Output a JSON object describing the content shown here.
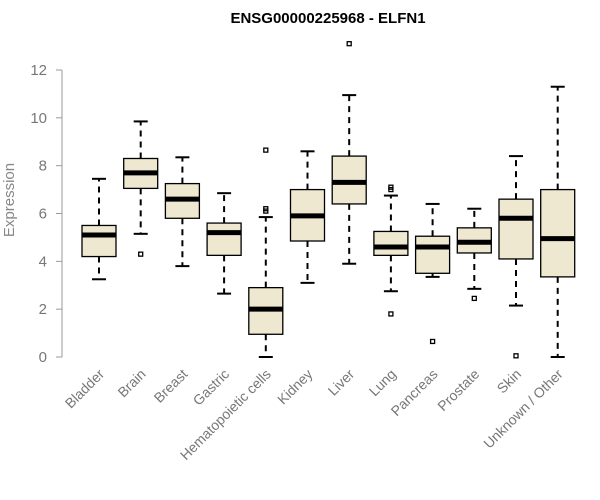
{
  "chart_data": {
    "type": "boxplot",
    "title": "ENSG00000225968 - ELFN1",
    "ylabel": "Expression",
    "ylim": [
      0,
      13
    ],
    "yticks": [
      0,
      2,
      4,
      6,
      8,
      10,
      12
    ],
    "categories": [
      "Bladder",
      "Brain",
      "Breast",
      "Gastric",
      "Hematopoietic cells",
      "Kidney",
      "Liver",
      "Lung",
      "Pancreas",
      "Prostate",
      "Skin",
      "Unknown / Other"
    ],
    "boxes": [
      {
        "category": "Bladder",
        "whisker_low": 3.25,
        "q1": 4.2,
        "median": 5.1,
        "q3": 5.5,
        "whisker_high": 7.45,
        "outliers": []
      },
      {
        "category": "Brain",
        "whisker_low": 5.15,
        "q1": 7.05,
        "median": 7.7,
        "q3": 8.3,
        "whisker_high": 9.85,
        "outliers": [
          4.3
        ]
      },
      {
        "category": "Breast",
        "whisker_low": 3.8,
        "q1": 5.8,
        "median": 6.6,
        "q3": 7.25,
        "whisker_high": 8.35,
        "outliers": []
      },
      {
        "category": "Gastric",
        "whisker_low": 2.65,
        "q1": 4.25,
        "median": 5.2,
        "q3": 5.6,
        "whisker_high": 6.85,
        "outliers": []
      },
      {
        "category": "Hematopoietic cells",
        "whisker_low": 0.0,
        "q1": 0.95,
        "median": 2.0,
        "q3": 2.9,
        "whisker_high": 5.85,
        "outliers": [
          6.1,
          6.2,
          8.65
        ]
      },
      {
        "category": "Kidney",
        "whisker_low": 3.1,
        "q1": 4.85,
        "median": 5.9,
        "q3": 7.0,
        "whisker_high": 8.6,
        "outliers": []
      },
      {
        "category": "Liver",
        "whisker_low": 3.9,
        "q1": 6.4,
        "median": 7.3,
        "q3": 8.4,
        "whisker_high": 10.95,
        "outliers": [
          13.1
        ]
      },
      {
        "category": "Lung",
        "whisker_low": 2.75,
        "q1": 4.25,
        "median": 4.6,
        "q3": 5.25,
        "whisker_high": 6.75,
        "outliers": [
          1.8,
          7.0,
          7.1
        ]
      },
      {
        "category": "Pancreas",
        "whisker_low": 3.35,
        "q1": 3.5,
        "median": 4.6,
        "q3": 5.05,
        "whisker_high": 6.4,
        "outliers": [
          0.65
        ]
      },
      {
        "category": "Prostate",
        "whisker_low": 2.85,
        "q1": 4.35,
        "median": 4.8,
        "q3": 5.4,
        "whisker_high": 6.2,
        "outliers": [
          2.45
        ]
      },
      {
        "category": "Skin",
        "whisker_low": 2.15,
        "q1": 4.1,
        "median": 5.8,
        "q3": 6.6,
        "whisker_high": 8.4,
        "outliers": [
          0.05
        ]
      },
      {
        "category": "Unknown / Other",
        "whisker_low": 0.0,
        "q1": 3.35,
        "median": 4.95,
        "q3": 7.0,
        "whisker_high": 11.3,
        "outliers": []
      }
    ],
    "box_fill": "#EFE8D0",
    "box_stroke": "#000000",
    "axis_color": "#999999",
    "grid": false,
    "legend": "none"
  }
}
